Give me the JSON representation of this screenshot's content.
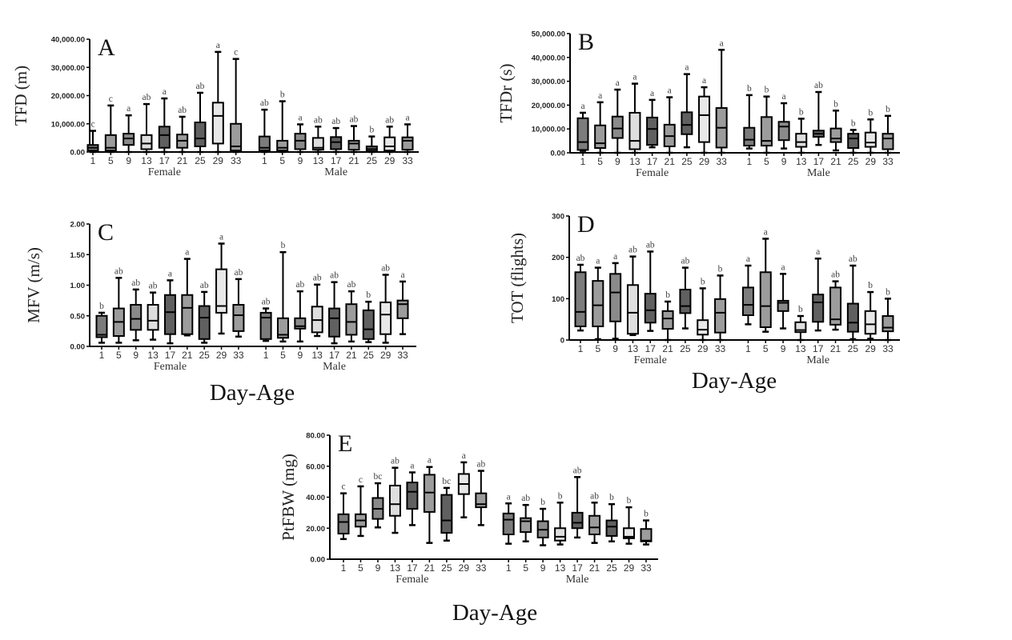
{
  "box_fills": [
    "#7c7c7c",
    "#9c9c9c",
    "#8a8a8a",
    "#dedede",
    "#606060",
    "#9c9c9c",
    "#606060",
    "#e8e8e8",
    "#9c9c9c"
  ],
  "chart_data": [
    {
      "type": "box",
      "panel_label": "A",
      "ylabel": "TFD (m)",
      "xlabel": "",
      "ylim": [
        0,
        40000
      ],
      "yticks": [
        0,
        10000,
        20000,
        30000,
        40000
      ],
      "ytick_labels": [
        "0.00",
        "10,000.00",
        "20,000.00",
        "30,000.00",
        "40,000.00"
      ],
      "categories": [
        "1",
        "5",
        "9",
        "13",
        "17",
        "21",
        "25",
        "29",
        "33"
      ],
      "groups": [
        {
          "label": "Female",
          "stats": [
            [
              0,
              500,
              1500,
              2500,
              7500
            ],
            [
              0,
              500,
              1500,
              6000,
              16500
            ],
            [
              0,
              2500,
              4800,
              6500,
              13000
            ],
            [
              0,
              1000,
              3000,
              6000,
              17000
            ],
            [
              0,
              1500,
              6000,
              9000,
              19000
            ],
            [
              0,
              1500,
              4000,
              6200,
              12500
            ],
            [
              0,
              2000,
              4800,
              10500,
              21000
            ],
            [
              0,
              3000,
              12800,
              17500,
              35500
            ],
            [
              0,
              500,
              2000,
              10000,
              33000
            ]
          ],
          "letters": [
            "c",
            "c",
            "a",
            "ab",
            "a",
            "ab",
            "ab",
            "a",
            "c"
          ]
        },
        {
          "label": "Male",
          "stats": [
            [
              0,
              500,
              1500,
              5500,
              15000
            ],
            [
              0,
              500,
              1500,
              4000,
              18000
            ],
            [
              0,
              1000,
              4000,
              6500,
              9800
            ],
            [
              0,
              800,
              1500,
              5000,
              9000
            ],
            [
              0,
              1000,
              3500,
              5300,
              8500
            ],
            [
              0,
              800,
              3000,
              4000,
              9200
            ],
            [
              0,
              300,
              1000,
              2000,
              5500
            ],
            [
              0,
              500,
              2000,
              5200,
              9000
            ],
            [
              0,
              800,
              4000,
              5200,
              9800
            ]
          ],
          "letters": [
            "ab",
            "b",
            "a",
            "ab",
            "ab",
            "ab",
            "b",
            "ab",
            "a"
          ]
        }
      ]
    },
    {
      "type": "box",
      "panel_label": "B",
      "ylabel": "TFDr (s)",
      "xlabel": "",
      "ylim": [
        0,
        50000
      ],
      "yticks": [
        0,
        10000,
        20000,
        30000,
        40000,
        50000
      ],
      "ytick_labels": [
        "0.00",
        "10,000.00",
        "20,000.00",
        "30,000.00",
        "40,000.00",
        "50,000.00"
      ],
      "categories": [
        "1",
        "5",
        "9",
        "13",
        "17",
        "21",
        "25",
        "29",
        "33"
      ],
      "groups": [
        {
          "label": "Female",
          "stats": [
            [
              800,
              1200,
              4500,
              14500,
              16800
            ],
            [
              0,
              2000,
              4000,
              11500,
              21200
            ],
            [
              0,
              6200,
              10200,
              15200,
              26500
            ],
            [
              0,
              1500,
              5000,
              16800,
              29000
            ],
            [
              2300,
              3300,
              10000,
              14800,
              22200
            ],
            [
              0,
              2700,
              7000,
              11800,
              23300
            ],
            [
              2300,
              7800,
              11700,
              17000,
              33000
            ],
            [
              0,
              4500,
              15800,
              23600,
              27500
            ],
            [
              0,
              2200,
              10500,
              18800,
              43200
            ]
          ],
          "letters": [
            "a",
            "a",
            "a",
            "a",
            "a",
            "a",
            "a",
            "a",
            "a"
          ]
        },
        {
          "label": "Male",
          "stats": [
            [
              1800,
              3000,
              5500,
              10500,
              24200
            ],
            [
              0,
              3000,
              5000,
              15000,
              23600
            ],
            [
              1800,
              5300,
              11000,
              13000,
              20800
            ],
            [
              0,
              2500,
              4500,
              8000,
              14300
            ],
            [
              3300,
              6700,
              8000,
              9300,
              25500
            ],
            [
              1000,
              4500,
              6000,
              10200,
              17700
            ],
            [
              0,
              2000,
              6000,
              8000,
              9600
            ],
            [
              0,
              2500,
              4300,
              8500,
              14000
            ],
            [
              0,
              1500,
              6000,
              8000,
              15500
            ]
          ],
          "letters": [
            "b",
            "b",
            "a",
            "b",
            "ab",
            "b",
            "b",
            "b",
            "b"
          ]
        }
      ]
    },
    {
      "type": "box",
      "panel_label": "C",
      "ylabel": "MFV (m/s)",
      "xlabel": "Day-Age",
      "ylim": [
        0,
        2
      ],
      "yticks": [
        0,
        0.5,
        1,
        1.5,
        2
      ],
      "ytick_labels": [
        "0.00",
        "0.50",
        "1.00",
        "1.50",
        "2.00"
      ],
      "categories": [
        "1",
        "5",
        "9",
        "13",
        "17",
        "21",
        "25",
        "29",
        "33"
      ],
      "groups": [
        {
          "label": "Female",
          "stats": [
            [
              0.06,
              0.15,
              0.19,
              0.5,
              0.55
            ],
            [
              0.06,
              0.17,
              0.4,
              0.62,
              1.12
            ],
            [
              0.1,
              0.27,
              0.45,
              0.68,
              0.93
            ],
            [
              0.11,
              0.27,
              0.42,
              0.68,
              0.88
            ],
            [
              0.05,
              0.2,
              0.56,
              0.84,
              1.08
            ],
            [
              0.18,
              0.2,
              0.63,
              0.84,
              1.43
            ],
            [
              0.06,
              0.12,
              0.47,
              0.66,
              0.89
            ],
            [
              0.21,
              0.55,
              0.66,
              1.26,
              1.68
            ],
            [
              0.16,
              0.25,
              0.51,
              0.68,
              1.1
            ]
          ],
          "letters": [
            "b",
            "ab",
            "ab",
            "ab",
            "a",
            "a",
            "ab",
            "a",
            "ab"
          ]
        },
        {
          "label": "Male",
          "stats": [
            [
              0.09,
              0.12,
              0.47,
              0.55,
              0.62
            ],
            [
              0.08,
              0.14,
              0.19,
              0.46,
              1.54
            ],
            [
              0.08,
              0.29,
              0.33,
              0.46,
              0.9
            ],
            [
              0.17,
              0.23,
              0.43,
              0.65,
              1.01
            ],
            [
              0.05,
              0.16,
              0.46,
              0.62,
              1.05
            ],
            [
              0.08,
              0.19,
              0.4,
              0.69,
              0.9
            ],
            [
              0.07,
              0.12,
              0.28,
              0.59,
              0.73
            ],
            [
              0.06,
              0.2,
              0.52,
              0.72,
              1.17
            ],
            [
              0.2,
              0.46,
              0.69,
              0.75,
              1.06
            ]
          ],
          "letters": [
            "ab",
            "b",
            "ab",
            "ab",
            "ab",
            "ab",
            "b",
            "ab",
            "a"
          ]
        }
      ]
    },
    {
      "type": "box",
      "panel_label": "D",
      "ylabel": "TOT (flights)",
      "xlabel": "Day-Age",
      "ylim": [
        0,
        300
      ],
      "yticks": [
        0,
        100,
        200,
        300
      ],
      "ytick_labels": [
        "0",
        "100",
        "200",
        "300"
      ],
      "categories": [
        "1",
        "5",
        "9",
        "13",
        "17",
        "21",
        "25",
        "29",
        "33"
      ],
      "groups": [
        {
          "label": "Female",
          "stats": [
            [
              23,
              33,
              68,
              164,
              182
            ],
            [
              2,
              33,
              84,
              143,
              175
            ],
            [
              3,
              45,
              115,
              160,
              186
            ],
            [
              12,
              15,
              66,
              133,
              202
            ],
            [
              22,
              42,
              72,
              112,
              214
            ],
            [
              0,
              27,
              52,
              70,
              93
            ],
            [
              28,
              65,
              82,
              122,
              175
            ],
            [
              0,
              13,
              25,
              48,
              125
            ],
            [
              0,
              18,
              66,
              99,
              156
            ]
          ],
          "letters": [
            "ab",
            "a",
            "a",
            "ab",
            "ab",
            "b",
            "ab",
            "b",
            "b"
          ]
        },
        {
          "label": "Male",
          "stats": [
            [
              38,
              60,
              85,
              127,
              180
            ],
            [
              20,
              31,
              82,
              164,
              245
            ],
            [
              28,
              70,
              90,
              95,
              160
            ],
            [
              0,
              19,
              24,
              43,
              58
            ],
            [
              23,
              44,
              91,
              110,
              197
            ],
            [
              25,
              37,
              50,
              127,
              142
            ],
            [
              2,
              20,
              42,
              88,
              180
            ],
            [
              3,
              15,
              38,
              70,
              116
            ],
            [
              0,
              21,
              30,
              58,
              100
            ]
          ],
          "letters": [
            "a",
            "a",
            "a",
            "b",
            "a",
            "ab",
            "ab",
            "b",
            "b"
          ]
        }
      ]
    },
    {
      "type": "box",
      "panel_label": "E",
      "ylabel": "PtFBW (mg)",
      "xlabel": "Day-Age",
      "ylim": [
        0,
        80
      ],
      "yticks": [
        0,
        20,
        40,
        60,
        80
      ],
      "ytick_labels": [
        "0.00",
        "20.00",
        "40.00",
        "60.00",
        "80.00"
      ],
      "categories": [
        "1",
        "5",
        "9",
        "13",
        "17",
        "21",
        "25",
        "29",
        "33"
      ],
      "groups": [
        {
          "label": "Female",
          "stats": [
            [
              13,
              16.5,
              24,
              29,
              42.5
            ],
            [
              15,
              21,
              25,
              29,
              47
            ],
            [
              20.5,
              26,
              32.5,
              39.5,
              49
            ],
            [
              17,
              28,
              35.5,
              47.5,
              59
            ],
            [
              22,
              32.5,
              43.5,
              49.5,
              56
            ],
            [
              10.5,
              30.5,
              43,
              54.5,
              59.5
            ],
            [
              12,
              17,
              25,
              41.5,
              46
            ],
            [
              27,
              42,
              48.5,
              55,
              62.5
            ],
            [
              22,
              33.5,
              35.5,
              42.5,
              57
            ]
          ],
          "letters": [
            "c",
            "c",
            "bc",
            "ab",
            "a",
            "a",
            "bc",
            "a",
            "ab"
          ]
        },
        {
          "label": "Male",
          "stats": [
            [
              10,
              16,
              25.5,
              29.5,
              36
            ],
            [
              11.5,
              17.5,
              24.5,
              26.5,
              35
            ],
            [
              9,
              14,
              19,
              24.5,
              32.5
            ],
            [
              9.5,
              12,
              14.5,
              20,
              36.5
            ],
            [
              14,
              20,
              23.5,
              30,
              53
            ],
            [
              10.5,
              16,
              20.5,
              28,
              36.5
            ],
            [
              11.5,
              15,
              21,
              25,
              35.5
            ],
            [
              10,
              13.5,
              14.5,
              20,
              33.5
            ],
            [
              9.5,
              11.5,
              12,
              19.5,
              25
            ]
          ],
          "letters": [
            "a",
            "ab",
            "b",
            "b",
            "ab",
            "ab",
            "b",
            "b",
            "b"
          ]
        }
      ]
    }
  ]
}
